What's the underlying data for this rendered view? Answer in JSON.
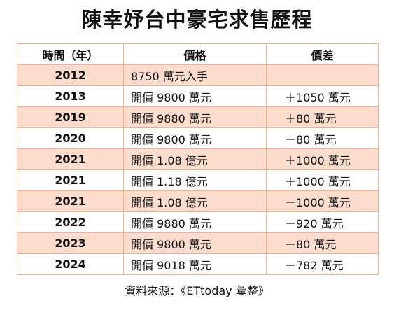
{
  "title": "陳幸妤台中豪宅求售歷程",
  "table": {
    "headers": [
      "時間（年）",
      "價格",
      "價差"
    ],
    "rows": [
      {
        "year": "2012",
        "price": "8750 萬元入手",
        "diff": ""
      },
      {
        "year": "2013",
        "price": "開價 9800 萬元",
        "diff": "＋1050 萬元"
      },
      {
        "year": "2019",
        "price": "開價 9880 萬元",
        "diff": "＋80 萬元"
      },
      {
        "year": "2020",
        "price": "開價 9800 萬元",
        "diff": "－80 萬元"
      },
      {
        "year": "2021",
        "price": "開價 1.08 億元",
        "diff": "＋1000 萬元"
      },
      {
        "year": "2021",
        "price": "開價 1.18 億元",
        "diff": "＋1000 萬元"
      },
      {
        "year": "2021",
        "price": "開價 1.08 億元",
        "diff": "－1000 萬元"
      },
      {
        "year": "2022",
        "price": "開價 9880 萬元",
        "diff": "－920 萬元"
      },
      {
        "year": "2023",
        "price": "開價 9800 萬元",
        "diff": "－80 萬元"
      },
      {
        "year": "2024",
        "price": "開價 9018 萬元",
        "diff": "－782 萬元"
      }
    ]
  },
  "source": "資料來源：《ETtoday 彙整》",
  "colors": {
    "row_shade": "#fbdccd",
    "border": "#f3b08e"
  }
}
